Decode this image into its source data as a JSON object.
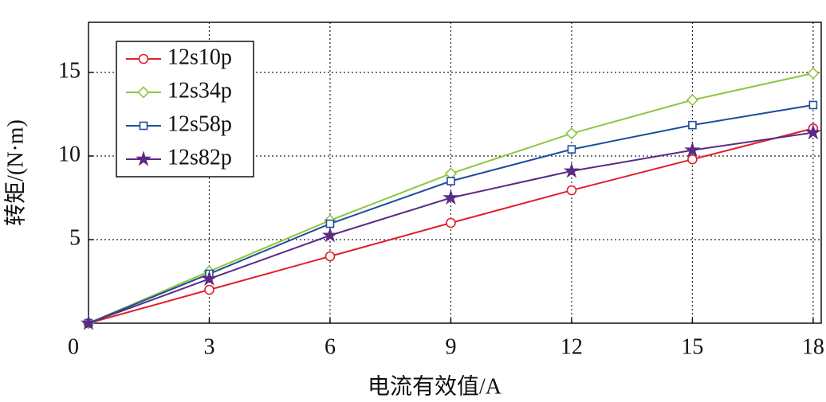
{
  "chart_data": {
    "type": "line",
    "x_label": "电流有效值/A",
    "y_label": "转矩/(N·m)",
    "x": [
      0,
      3,
      6,
      9,
      12,
      15,
      18
    ],
    "series": [
      {
        "name": "12s10p",
        "color": "#e0202a",
        "marker": "circle",
        "values": [
          0,
          2,
          4,
          6,
          7.95,
          9.8,
          11.65
        ]
      },
      {
        "name": "12s34p",
        "color": "#8dc63f",
        "marker": "diamond",
        "values": [
          0,
          3.1,
          6.15,
          8.95,
          11.35,
          13.35,
          14.95
        ]
      },
      {
        "name": "12s58p",
        "color": "#1f4e9c",
        "marker": "square",
        "values": [
          0,
          2.95,
          5.95,
          8.5,
          10.4,
          11.85,
          13.05
        ]
      },
      {
        "name": "12s82p",
        "color": "#5b2a86",
        "marker": "star",
        "values": [
          0,
          2.65,
          5.25,
          7.5,
          9.1,
          10.35,
          11.4
        ]
      }
    ],
    "xlim": [
      0,
      18.2
    ],
    "xticks": [
      0,
      3,
      6,
      9,
      12,
      15,
      18
    ],
    "ylim": [
      0,
      18
    ],
    "yticks": [
      5,
      10,
      15
    ],
    "grid": true,
    "legend": "upper-left"
  }
}
